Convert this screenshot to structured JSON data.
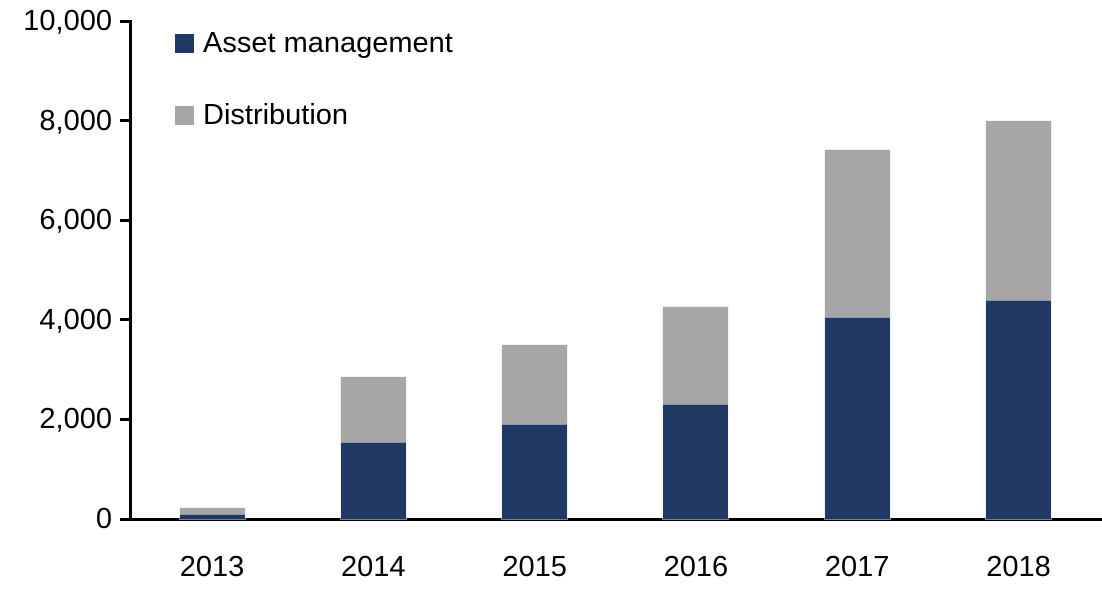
{
  "chart_data": {
    "type": "bar",
    "stacked": true,
    "title": "",
    "xlabel": "",
    "ylabel": "",
    "categories": [
      "2013",
      "2014",
      "2015",
      "2016",
      "2017",
      "2018"
    ],
    "series": [
      {
        "name": "Asset management",
        "color": "#1F3864",
        "values": [
          100,
          1550,
          1900,
          2300,
          4050,
          4400
        ]
      },
      {
        "name": "Distribution",
        "color": "#A6A6A6",
        "values": [
          120,
          1300,
          1600,
          1950,
          3350,
          3600
        ]
      }
    ],
    "stack_totals": [
      220,
      2850,
      3500,
      4250,
      7400,
      8000
    ],
    "ylim": [
      0,
      10000
    ],
    "ytick_interval": 2000,
    "ytick_values": [
      0,
      2000,
      4000,
      6000,
      8000,
      10000
    ],
    "ytick_labels": [
      "0",
      "2,000",
      "4,000",
      "6,000",
      "8,000",
      "10,000"
    ],
    "grid": false,
    "legend_position": "top-left",
    "axis_color": "#000000",
    "background_color": "#FFFFFF",
    "text_color": "#000000"
  }
}
